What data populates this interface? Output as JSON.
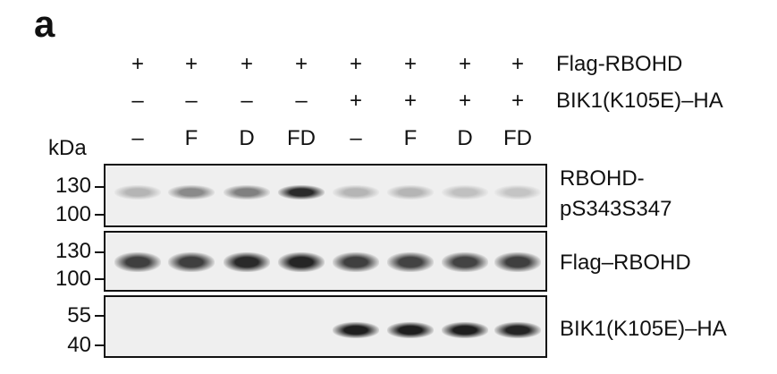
{
  "figure": {
    "panel_letter": "a",
    "kda_label": "kDa",
    "lanes": [
      {
        "flag_rbohd": "+",
        "bik1": "–",
        "treatment": "–"
      },
      {
        "flag_rbohd": "+",
        "bik1": "–",
        "treatment": "F"
      },
      {
        "flag_rbohd": "+",
        "bik1": "–",
        "treatment": "D"
      },
      {
        "flag_rbohd": "+",
        "bik1": "–",
        "treatment": "FD"
      },
      {
        "flag_rbohd": "+",
        "bik1": "+",
        "treatment": "–"
      },
      {
        "flag_rbohd": "+",
        "bik1": "+",
        "treatment": "F"
      },
      {
        "flag_rbohd": "+",
        "bik1": "+",
        "treatment": "D"
      },
      {
        "flag_rbohd": "+",
        "bik1": "+",
        "treatment": "FD"
      }
    ],
    "row_labels": {
      "flag_rbohd": "Flag-RBOHD",
      "bik1": "BIK1(K105E)–HA"
    },
    "blots": [
      {
        "label_line1": "RBOHD-",
        "label_line2": "pS343S347",
        "mw_markers": [
          "130",
          "100"
        ],
        "band_intensity": [
          0.25,
          0.45,
          0.5,
          0.9,
          0.25,
          0.25,
          0.2,
          0.18
        ]
      },
      {
        "label_line1": "Flag–RBOHD",
        "label_line2": "",
        "mw_markers": [
          "130",
          "100"
        ],
        "band_intensity": [
          0.8,
          0.8,
          0.9,
          0.92,
          0.8,
          0.78,
          0.78,
          0.8
        ]
      },
      {
        "label_line1": "BIK1(K105E)–HA",
        "label_line2": "",
        "mw_markers": [
          "55",
          "40"
        ],
        "band_intensity": [
          0,
          0,
          0,
          0,
          0.95,
          0.95,
          0.95,
          0.92
        ]
      }
    ]
  }
}
